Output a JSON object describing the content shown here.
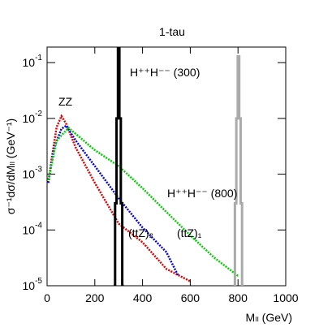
{
  "chart_data": {
    "type": "line",
    "title": "1-tau",
    "xlabel": "Mₗₗ (GeV)",
    "ylabel": "σ⁻¹dσ/dMₗₗ (GeV⁻¹)",
    "xlim": [
      0,
      1000
    ],
    "xticks": [
      0,
      200,
      400,
      600,
      800,
      1000
    ],
    "ylim": [
      1e-05,
      0.19
    ],
    "log_y": true,
    "yticks": [
      {
        "value": 0.1,
        "label": "10",
        "exponent": "-1"
      },
      {
        "value": 0.01,
        "label": "10",
        "exponent": "-2"
      },
      {
        "value": 0.001,
        "label": "10",
        "exponent": "-3"
      },
      {
        "value": 0.0001,
        "label": "10",
        "exponent": "-4"
      },
      {
        "value": 1e-05,
        "label": "10",
        "exponent": "-5"
      }
    ],
    "annotations": [
      "ZZ",
      "H⁺⁺H⁻⁻ (300)",
      "H⁺⁺H⁻⁻ (800)",
      "(ttZ)₂",
      "(ttZ)₁"
    ],
    "series": [
      {
        "name": "ZZ",
        "color": "#e00000",
        "style": "dotted",
        "x": [
          5,
          20,
          40,
          60,
          80,
          120,
          200,
          300,
          400,
          500,
          600
        ],
        "values": [
          0.0007,
          0.002,
          0.007,
          0.011,
          0.008,
          0.003,
          0.0007,
          0.00013,
          6e-05,
          2e-05,
          1.2e-05
        ]
      },
      {
        "name": "(ttZ)₂",
        "color": "#0000e0",
        "style": "dotted",
        "x": [
          5,
          30,
          60,
          80,
          120,
          200,
          300,
          400,
          500,
          550
        ],
        "values": [
          0.0007,
          0.003,
          0.0065,
          0.0074,
          0.004,
          0.0014,
          0.00037,
          0.00011,
          4e-05,
          1.5e-05
        ]
      },
      {
        "name": "(ttZ)₁",
        "color": "#00d000",
        "style": "dotted",
        "x": [
          5,
          40,
          90,
          200,
          300,
          400,
          500,
          600,
          700,
          800
        ],
        "values": [
          0.0008,
          0.004,
          0.0068,
          0.0027,
          0.0014,
          0.00056,
          0.00021,
          8e-05,
          3.2e-05,
          1.5e-05
        ]
      },
      {
        "name": "H⁺⁺H⁻⁻ (300)",
        "color": "#000000",
        "style": "step",
        "x": [
          282,
          288,
          294,
          300,
          306,
          312,
          318
        ],
        "values": [
          1e-05,
          0.0003,
          0.01,
          0.2,
          0.01,
          0.0003,
          1e-05
        ]
      },
      {
        "name": "H⁺⁺H⁻⁻ (800)",
        "color": "#aaaaaa",
        "style": "step",
        "x": [
          784,
          790,
          796,
          802,
          808,
          814,
          820
        ],
        "values": [
          1e-05,
          0.0003,
          0.01,
          0.13,
          0.01,
          0.0003,
          1e-05
        ]
      }
    ]
  }
}
